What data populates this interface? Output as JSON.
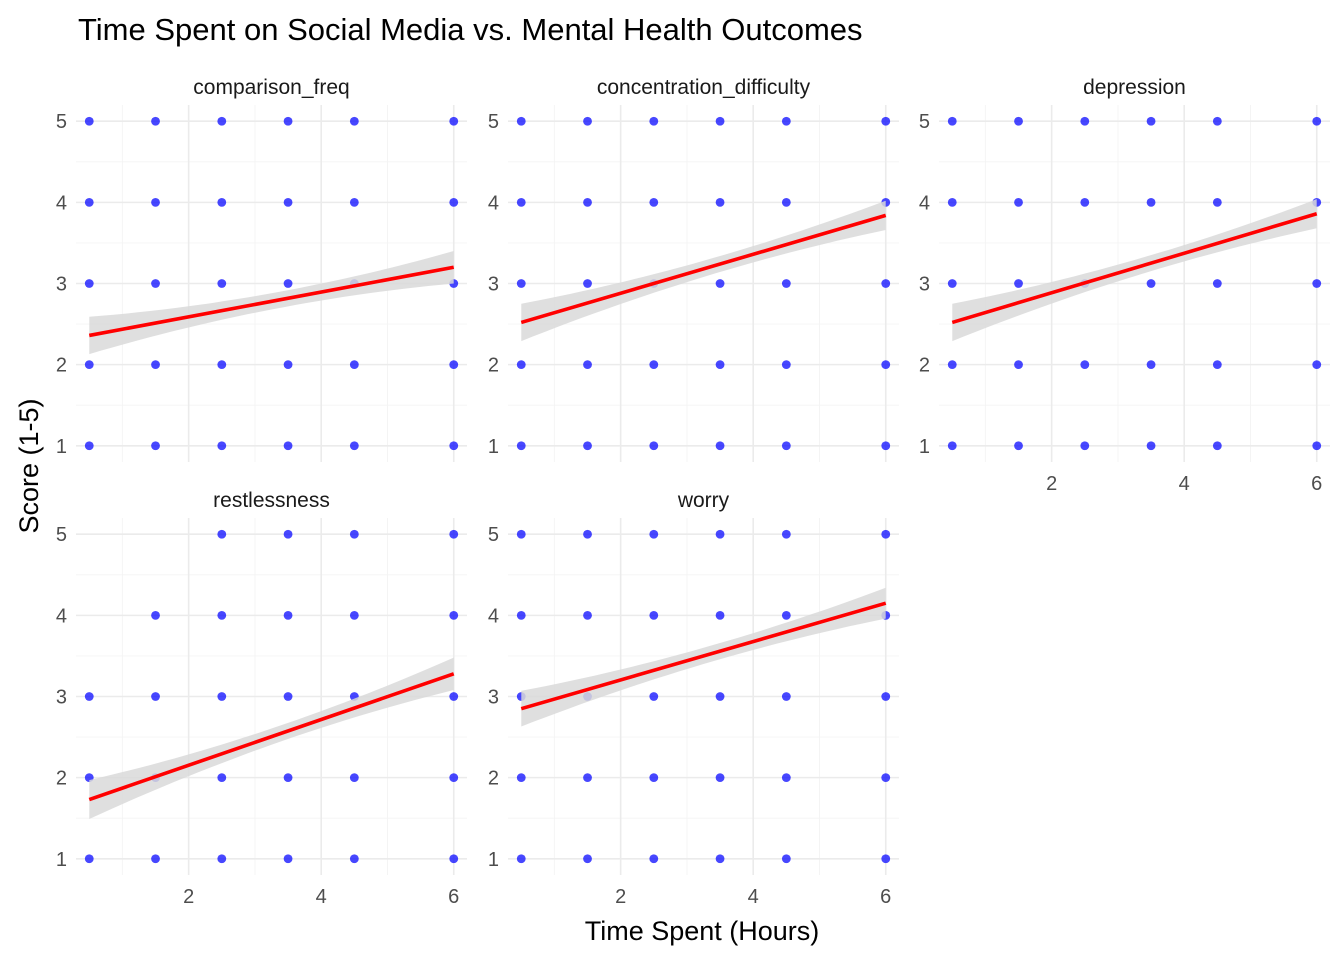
{
  "chart_data": {
    "type": "scatter",
    "title": "Time Spent on Social Media vs. Mental Health Outcomes",
    "xlabel": "Time Spent (Hours)",
    "ylabel": "Score (1-5)",
    "xlim": [
      0.3,
      6.2
    ],
    "ylim": [
      0.8,
      5.2
    ],
    "x_ticks": [
      2,
      4,
      6
    ],
    "y_ticks": [
      1,
      2,
      3,
      4,
      5
    ],
    "grid": true,
    "layout": "facet_wrap (2 rows x 3 columns)",
    "point_color": "#0000ff",
    "trend_color": "#ff0000",
    "band_color": "#d9d9d9",
    "facets": [
      {
        "name": "comparison_freq",
        "points": [
          [
            0.5,
            1
          ],
          [
            1.5,
            1
          ],
          [
            2.5,
            1
          ],
          [
            3.5,
            1
          ],
          [
            4.5,
            1
          ],
          [
            6,
            1
          ],
          [
            0.5,
            2
          ],
          [
            1.5,
            2
          ],
          [
            2.5,
            2
          ],
          [
            3.5,
            2
          ],
          [
            4.5,
            2
          ],
          [
            6,
            2
          ],
          [
            0.5,
            3
          ],
          [
            1.5,
            3
          ],
          [
            2.5,
            3
          ],
          [
            3.5,
            3
          ],
          [
            4.5,
            3
          ],
          [
            6,
            3
          ],
          [
            0.5,
            4
          ],
          [
            1.5,
            4
          ],
          [
            2.5,
            4
          ],
          [
            3.5,
            4
          ],
          [
            4.5,
            4
          ],
          [
            6,
            4
          ],
          [
            0.5,
            5
          ],
          [
            1.5,
            5
          ],
          [
            2.5,
            5
          ],
          [
            3.5,
            5
          ],
          [
            4.5,
            5
          ],
          [
            6,
            5
          ]
        ],
        "trend": {
          "x": [
            0.5,
            6
          ],
          "y": [
            2.36,
            3.2
          ],
          "band": [
            0.23,
            0.1,
            0.2
          ]
        }
      },
      {
        "name": "concentration_difficulty",
        "points": [
          [
            0.5,
            1
          ],
          [
            1.5,
            1
          ],
          [
            2.5,
            1
          ],
          [
            3.5,
            1
          ],
          [
            4.5,
            1
          ],
          [
            6,
            1
          ],
          [
            0.5,
            2
          ],
          [
            1.5,
            2
          ],
          [
            2.5,
            2
          ],
          [
            3.5,
            2
          ],
          [
            4.5,
            2
          ],
          [
            6,
            2
          ],
          [
            0.5,
            3
          ],
          [
            1.5,
            3
          ],
          [
            2.5,
            3
          ],
          [
            3.5,
            3
          ],
          [
            4.5,
            3
          ],
          [
            6,
            3
          ],
          [
            0.5,
            4
          ],
          [
            1.5,
            4
          ],
          [
            2.5,
            4
          ],
          [
            3.5,
            4
          ],
          [
            4.5,
            4
          ],
          [
            6,
            4
          ],
          [
            0.5,
            5
          ],
          [
            1.5,
            5
          ],
          [
            2.5,
            5
          ],
          [
            3.5,
            5
          ],
          [
            4.5,
            5
          ],
          [
            6,
            5
          ]
        ],
        "trend": {
          "x": [
            0.5,
            6
          ],
          "y": [
            2.52,
            3.84
          ],
          "band": [
            0.23,
            0.1,
            0.18
          ]
        }
      },
      {
        "name": "depression",
        "points": [
          [
            0.5,
            1
          ],
          [
            1.5,
            1
          ],
          [
            2.5,
            1
          ],
          [
            3.5,
            1
          ],
          [
            4.5,
            1
          ],
          [
            6,
            1
          ],
          [
            0.5,
            2
          ],
          [
            1.5,
            2
          ],
          [
            2.5,
            2
          ],
          [
            3.5,
            2
          ],
          [
            4.5,
            2
          ],
          [
            6,
            2
          ],
          [
            0.5,
            3
          ],
          [
            1.5,
            3
          ],
          [
            2.5,
            3
          ],
          [
            3.5,
            3
          ],
          [
            4.5,
            3
          ],
          [
            6,
            3
          ],
          [
            0.5,
            4
          ],
          [
            1.5,
            4
          ],
          [
            2.5,
            4
          ],
          [
            3.5,
            4
          ],
          [
            4.5,
            4
          ],
          [
            6,
            4
          ],
          [
            0.5,
            5
          ],
          [
            1.5,
            5
          ],
          [
            2.5,
            5
          ],
          [
            3.5,
            5
          ],
          [
            4.5,
            5
          ],
          [
            6,
            5
          ]
        ],
        "trend": {
          "x": [
            0.5,
            6
          ],
          "y": [
            2.52,
            3.86
          ],
          "band": [
            0.23,
            0.1,
            0.18
          ]
        }
      },
      {
        "name": "restlessness",
        "points": [
          [
            0.5,
            1
          ],
          [
            1.5,
            1
          ],
          [
            2.5,
            1
          ],
          [
            3.5,
            1
          ],
          [
            4.5,
            1
          ],
          [
            6,
            1
          ],
          [
            0.5,
            2
          ],
          [
            1.5,
            2
          ],
          [
            2.5,
            2
          ],
          [
            3.5,
            2
          ],
          [
            4.5,
            2
          ],
          [
            6,
            2
          ],
          [
            0.5,
            3
          ],
          [
            1.5,
            3
          ],
          [
            2.5,
            3
          ],
          [
            3.5,
            3
          ],
          [
            4.5,
            3
          ],
          [
            6,
            3
          ],
          [
            1.5,
            4
          ],
          [
            2.5,
            4
          ],
          [
            3.5,
            4
          ],
          [
            4.5,
            4
          ],
          [
            6,
            4
          ],
          [
            2.5,
            5
          ],
          [
            3.5,
            5
          ],
          [
            4.5,
            5
          ],
          [
            6,
            5
          ]
        ],
        "trend": {
          "x": [
            0.5,
            6
          ],
          "y": [
            1.73,
            3.28
          ],
          "band": [
            0.24,
            0.1,
            0.2
          ]
        }
      },
      {
        "name": "worry",
        "points": [
          [
            0.5,
            1
          ],
          [
            1.5,
            1
          ],
          [
            2.5,
            1
          ],
          [
            3.5,
            1
          ],
          [
            4.5,
            1
          ],
          [
            6,
            1
          ],
          [
            0.5,
            2
          ],
          [
            1.5,
            2
          ],
          [
            2.5,
            2
          ],
          [
            3.5,
            2
          ],
          [
            4.5,
            2
          ],
          [
            6,
            2
          ],
          [
            0.5,
            3
          ],
          [
            1.5,
            3
          ],
          [
            2.5,
            3
          ],
          [
            3.5,
            3
          ],
          [
            4.5,
            3
          ],
          [
            6,
            3
          ],
          [
            0.5,
            4
          ],
          [
            1.5,
            4
          ],
          [
            2.5,
            4
          ],
          [
            3.5,
            4
          ],
          [
            4.5,
            4
          ],
          [
            6,
            4
          ],
          [
            0.5,
            5
          ],
          [
            1.5,
            5
          ],
          [
            2.5,
            5
          ],
          [
            3.5,
            5
          ],
          [
            4.5,
            5
          ],
          [
            6,
            5
          ]
        ],
        "trend": {
          "x": [
            0.5,
            6
          ],
          "y": [
            2.85,
            4.15
          ],
          "band": [
            0.22,
            0.1,
            0.19
          ]
        }
      }
    ]
  }
}
